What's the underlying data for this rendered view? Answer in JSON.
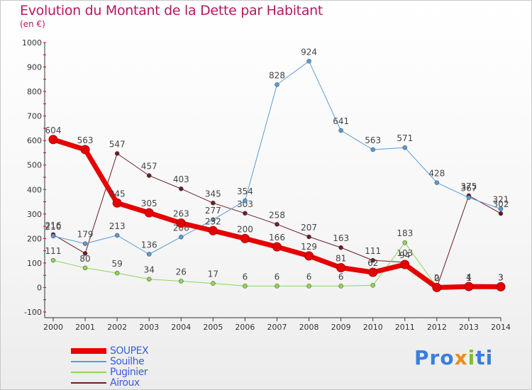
{
  "title": "Evolution du Montant de la Dette par Habitant",
  "subtitle": "(en €)",
  "logo": {
    "p1": "Pro",
    "p2": "x",
    "p3": "i",
    "p4": "ti"
  },
  "chart_data": {
    "type": "line",
    "title": "Evolution du Montant de la Dette par Habitant",
    "ylabel": "(en €)",
    "ylim": [
      -100,
      1000
    ],
    "yticks": [
      -100,
      0,
      100,
      200,
      300,
      400,
      500,
      600,
      700,
      800,
      900,
      1000
    ],
    "x": [
      "2000",
      "2001",
      "2002",
      "2003",
      "2004",
      "2005",
      "2006",
      "2007",
      "2008",
      "2009",
      "2010",
      "2011",
      "2012",
      "2013",
      "2014"
    ],
    "grid": false,
    "legend_position": "bottom-left",
    "series": [
      {
        "name": "Airoux",
        "color": "#6b1d2a",
        "width": 1,
        "values": [
          216,
          139,
          547,
          457,
          403,
          345,
          303,
          258,
          207,
          163,
          111,
          103,
          1,
          375,
          302
        ],
        "labels": [
          "216",
          "",
          "547",
          "457",
          "403",
          "345",
          "303",
          "258",
          "207",
          "163",
          "111",
          "103",
          "",
          "375",
          "302"
        ]
      },
      {
        "name": "Souilhe",
        "color": "#5b9bd5",
        "width": 1,
        "values": [
          210,
          179,
          213,
          136,
          206,
          277,
          354,
          828,
          924,
          641,
          563,
          571,
          428,
          367,
          321
        ],
        "labels": [
          "210",
          "179",
          "213",
          "136",
          "206",
          "277",
          "354",
          "828",
          "924",
          "641",
          "563",
          "571",
          "428",
          "367",
          "321"
        ]
      },
      {
        "name": "Puginier",
        "color": "#8fd45a",
        "width": 1,
        "values": [
          111,
          80,
          59,
          34,
          26,
          17,
          6,
          6,
          6,
          6,
          9,
          183,
          2,
          1,
          3
        ],
        "labels": [
          "111",
          "80",
          "59",
          "34",
          "26",
          "17",
          "6",
          "6",
          "6",
          "6",
          "",
          "183",
          "2",
          "1",
          "3"
        ]
      },
      {
        "name": "SOUPEX",
        "color": "#e60000",
        "width": 7,
        "values": [
          604,
          563,
          345,
          305,
          263,
          232,
          200,
          166,
          129,
          81,
          62,
          94,
          0,
          4,
          3
        ],
        "labels": [
          "604",
          "563",
          "345",
          "305",
          "263",
          "232",
          "200",
          "166",
          "129",
          "81",
          "62",
          "94",
          "0",
          "4",
          "3"
        ]
      }
    ]
  },
  "legend": [
    {
      "name": "SOUPEX",
      "color": "#e60000"
    },
    {
      "name": "Souilhe",
      "color": "#5b9bd5"
    },
    {
      "name": "Puginier",
      "color": "#8fd45a"
    },
    {
      "name": "Airoux",
      "color": "#6b1d2a"
    }
  ]
}
